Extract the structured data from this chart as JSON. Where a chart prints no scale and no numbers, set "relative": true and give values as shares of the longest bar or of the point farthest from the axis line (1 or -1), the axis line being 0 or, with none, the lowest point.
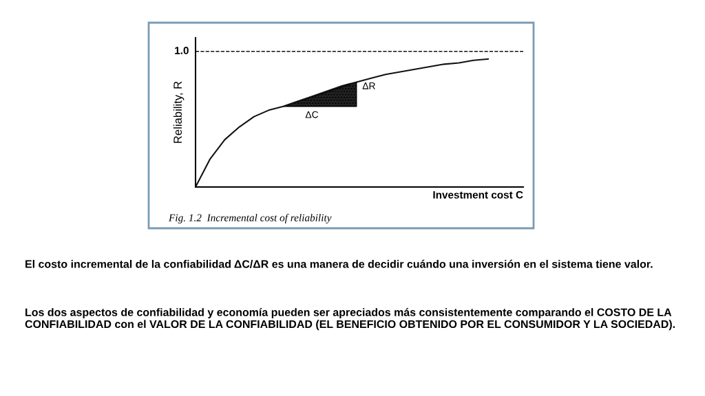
{
  "chart_data": {
    "type": "line",
    "relative": true,
    "xlabel": "Investment cost C",
    "ylabel": "Reliability, R",
    "categories": [
      null,
      null,
      null,
      null,
      null,
      null,
      null,
      null,
      null,
      null,
      null,
      null,
      null,
      null,
      null,
      null,
      null,
      null,
      null,
      null,
      null
    ],
    "series": [
      {
        "color": "#111111",
        "values": [
          0,
          0.22,
          0.37,
          0.47,
          0.55,
          0.6,
          0.63,
          0.67,
          0.71,
          0.75,
          0.79,
          0.82,
          0.85,
          0.88,
          0.9,
          0.92,
          0.94,
          0.96,
          0.97,
          0.99,
          1.0
        ]
      }
    ],
    "ref_lines": [
      {
        "axis": "y",
        "value": 1.06,
        "color": "#111111",
        "line_style": "dashed"
      }
    ],
    "annotations": [
      "1.0",
      "ΔR",
      "ΔC",
      "Fig. 1.2  Incremental cost of reliability",
      "El costo incremental de la confiabilidad ΔC/ΔR es una manera de decidir cuándo una inversión en el sistema tiene valor.",
      "Los dos aspectos de confiabilidad y economía pueden ser apreciados más consistentemente comparando el COSTO DE LA CONFIABILIDAD con el VALOR DE LA CONFIABILIDAD (EL BENEFICIO OBTENIDO POR EL CONSUMIDOR Y LA SOCIEDAD)."
    ],
    "legend": false,
    "marker": "none",
    "line_style": "solid"
  }
}
